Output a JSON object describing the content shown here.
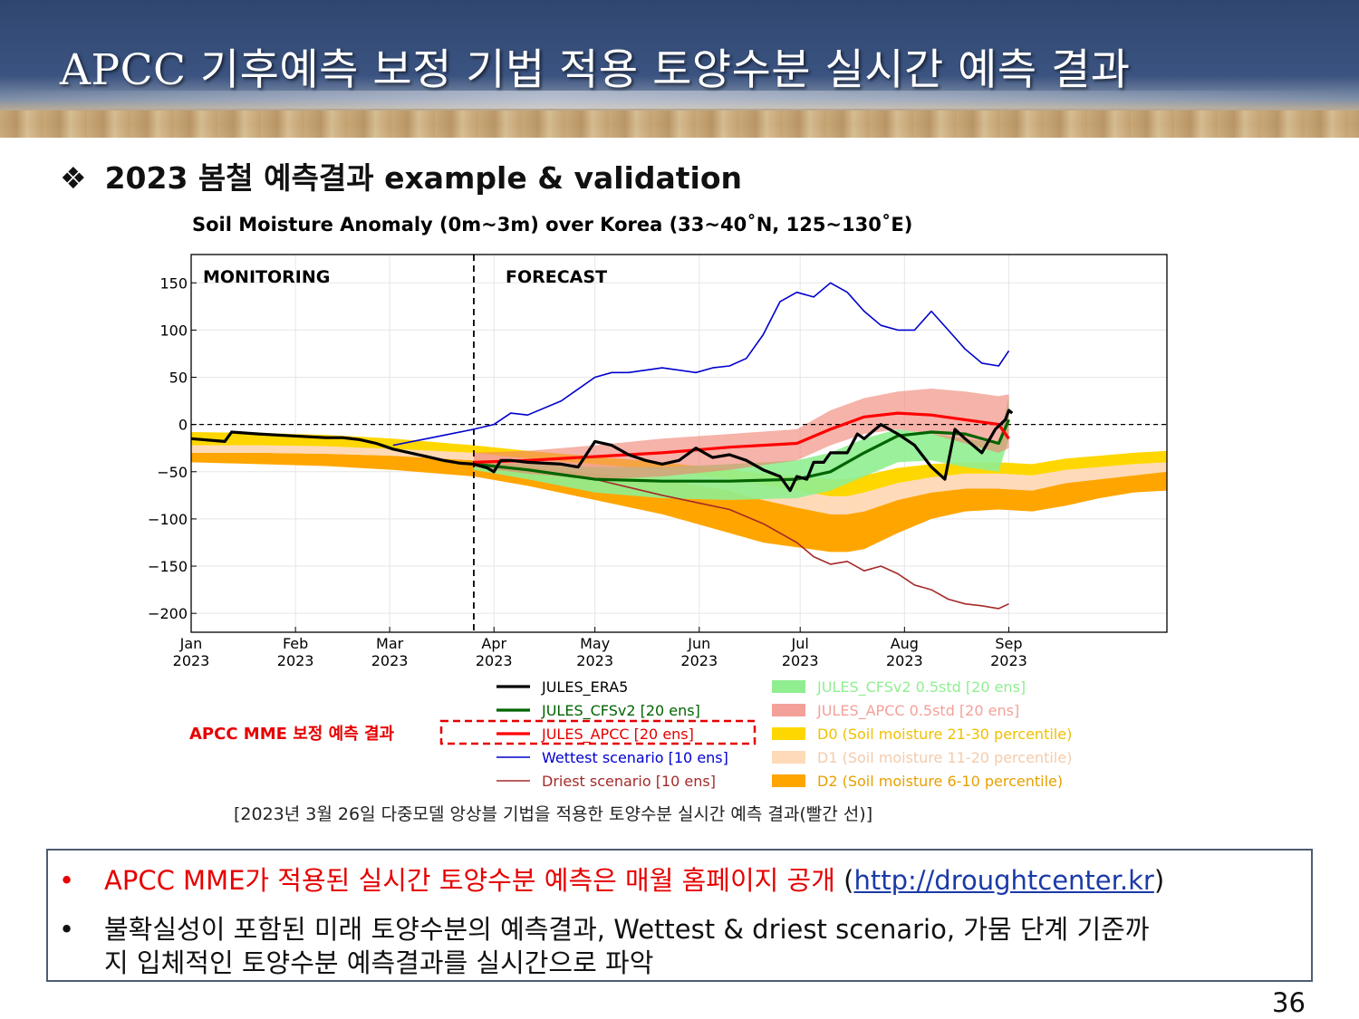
{
  "slide": {
    "title": "APCC 기후예측 보정 기법 적용 토양수분 실시간 예측 결과",
    "subtitle_bullet": "❖",
    "subtitle": "2023 봄철 예측결과 example & validation",
    "caption": "[2023년 3월 26일 다중모델 앙상블 기법을 적용한 토양수분 실시간 예측 결과(빨간 선)]",
    "callout": "APCC MME 보정 예측 결과",
    "page_number": "36"
  },
  "notes": {
    "bullet": "•",
    "line1_red": "APCC MME가 적용된 실시간 토양수분 예측은 매월 홈페이지 공개",
    "line1_open": " (",
    "line1_link": "http://droughtcenter.kr",
    "line1_close": ")",
    "line2": "불확실성이 포함된 미래 토양수분의 예측결과, Wettest & driest scenario, 가뭄 단계 기준까",
    "line3": "지 입체적인 토양수분 예측결과를 실시간으로 파악"
  },
  "chart_data": {
    "type": "line",
    "title": "Soil Moisture Anomaly (0m~3m) over Korea (33~40˚N, 125~130˚E)",
    "xlabel": "",
    "ylabel": "",
    "xlim_doy": [
      0,
      290
    ],
    "ylim": [
      -220,
      180
    ],
    "yticks": [
      150,
      100,
      50,
      0,
      -50,
      -100,
      -150,
      -200
    ],
    "ytick_labels": [
      "150",
      "100",
      "50",
      "0",
      "−50",
      "−100",
      "−150",
      "−200"
    ],
    "xticks": [
      {
        "doy": 0,
        "month": "Jan",
        "year": "2023"
      },
      {
        "doy": 31,
        "month": "Feb",
        "year": "2023"
      },
      {
        "doy": 59,
        "month": "Mar",
        "year": "2023"
      },
      {
        "doy": 90,
        "month": "Apr",
        "year": "2023"
      },
      {
        "doy": 120,
        "month": "May",
        "year": "2023"
      },
      {
        "doy": 151,
        "month": "Jun",
        "year": "2023"
      },
      {
        "doy": 181,
        "month": "Jul",
        "year": "2023"
      },
      {
        "doy": 212,
        "month": "Aug",
        "year": "2023"
      },
      {
        "doy": 243,
        "month": "Sep",
        "year": "2023"
      }
    ],
    "grid": true,
    "forecast_start_doy": 84,
    "annotations": [
      "MONITORING",
      "FORECAST"
    ],
    "legend_left": [
      {
        "label": "JULES_ERA5",
        "color": "#000000",
        "text_color": "#000000"
      },
      {
        "label": "JULES_CFSv2 [20 ens]",
        "color": "#006400",
        "text_color": "#006400"
      },
      {
        "label": "JULES_APCC [20 ens]",
        "color": "#ff0000",
        "text_color": "#e60000"
      },
      {
        "label": "Wettest scenario [10 ens]",
        "color": "#0000cd",
        "text_color": "#0000cd"
      },
      {
        "label": "Driest scenario [10 ens]",
        "color": "#a52a2a",
        "text_color": "#a52a2a"
      }
    ],
    "legend_right": [
      {
        "label": "JULES_CFSv2 0.5std [20 ens]",
        "color": "#90ee90",
        "text_color": "#90ee90"
      },
      {
        "label": "JULES_APCC 0.5std [20 ens]",
        "color": "#f4a09a",
        "text_color": "#f4a09a"
      },
      {
        "label": "D0 (Soil moisture 21-30 percentile)",
        "color": "#ffd700",
        "text_color": "#f0c000"
      },
      {
        "label": "D1 (Soil moisture 11-20 percentile)",
        "color": "#ffdab9",
        "text_color": "#f5cbaa"
      },
      {
        "label": "D2 (Soil moisture 6-10 percentile)",
        "color": "#ffa500",
        "text_color": "#e8a000"
      }
    ],
    "series": {
      "d2_band": {
        "x": [
          0,
          20,
          40,
          60,
          84,
          100,
          120,
          140,
          160,
          170,
          180,
          190,
          195,
          200,
          210,
          220,
          230,
          240,
          250,
          260,
          270,
          280,
          290
        ],
        "upper": [
          -30,
          -30,
          -31,
          -33,
          -38,
          -45,
          -52,
          -58,
          -70,
          -80,
          -88,
          -95,
          -95,
          -92,
          -80,
          -72,
          -68,
          -68,
          -70,
          -62,
          -58,
          -54,
          -50
        ],
        "lower": [
          -40,
          -42,
          -44,
          -48,
          -55,
          -65,
          -80,
          -95,
          -115,
          -125,
          -130,
          -135,
          -135,
          -132,
          -115,
          -100,
          -92,
          -90,
          -92,
          -86,
          -78,
          -72,
          -70
        ]
      },
      "d1_band": {
        "x": [
          0,
          20,
          40,
          60,
          84,
          100,
          120,
          140,
          160,
          170,
          180,
          190,
          195,
          200,
          210,
          220,
          230,
          240,
          250,
          260,
          270,
          280,
          290
        ],
        "upper": [
          -22,
          -22,
          -23,
          -26,
          -30,
          -36,
          -42,
          -48,
          -58,
          -64,
          -70,
          -76,
          -76,
          -72,
          -62,
          -56,
          -52,
          -52,
          -54,
          -48,
          -45,
          -42,
          -40
        ],
        "lower": [
          -30,
          -30,
          -31,
          -33,
          -38,
          -45,
          -52,
          -58,
          -70,
          -80,
          -88,
          -95,
          -95,
          -92,
          -80,
          -72,
          -68,
          -68,
          -70,
          -62,
          -58,
          -54,
          -50
        ]
      },
      "d0_band": {
        "x": [
          0,
          20,
          40,
          60,
          84,
          100,
          120,
          140,
          160,
          170,
          180,
          190,
          195,
          200,
          210,
          220,
          230,
          240,
          250,
          260,
          270,
          280,
          290
        ],
        "upper": [
          -8,
          -9,
          -11,
          -15,
          -22,
          -28,
          -34,
          -40,
          -48,
          -52,
          -55,
          -58,
          -58,
          -54,
          -46,
          -42,
          -40,
          -40,
          -42,
          -36,
          -33,
          -30,
          -28
        ],
        "lower": [
          -22,
          -22,
          -23,
          -26,
          -30,
          -36,
          -42,
          -48,
          -58,
          -64,
          -70,
          -76,
          -76,
          -72,
          -62,
          -56,
          -52,
          -52,
          -54,
          -48,
          -45,
          -42,
          -40
        ]
      },
      "cfs_band": {
        "x": [
          84,
          100,
          120,
          140,
          160,
          180,
          190,
          200,
          210,
          220,
          230,
          240,
          243
        ],
        "upper": [
          -40,
          -42,
          -45,
          -45,
          -42,
          -38,
          -30,
          -15,
          -5,
          -10,
          -15,
          -20,
          30
        ],
        "lower": [
          -48,
          -58,
          -72,
          -78,
          -80,
          -78,
          -70,
          -55,
          -40,
          -38,
          -45,
          -50,
          -15
        ]
      },
      "apcc_band": {
        "x": [
          84,
          100,
          120,
          140,
          160,
          180,
          190,
          200,
          210,
          220,
          230,
          240,
          243
        ],
        "upper": [
          -30,
          -28,
          -22,
          -15,
          -10,
          -5,
          15,
          28,
          35,
          38,
          35,
          30,
          32
        ],
        "lower": [
          -45,
          -52,
          -58,
          -55,
          -48,
          -38,
          -22,
          -10,
          -5,
          -10,
          -20,
          -30,
          -25
        ]
      },
      "era5": {
        "x": [
          0,
          10,
          12,
          20,
          30,
          40,
          45,
          50,
          55,
          60,
          65,
          70,
          75,
          80,
          84,
          88,
          90,
          92,
          95,
          100,
          110,
          115,
          120,
          125,
          130,
          135,
          140,
          145,
          150,
          155,
          160,
          165,
          170,
          175,
          178,
          180,
          183,
          185,
          188,
          190,
          195,
          198,
          200,
          205,
          210,
          215,
          220,
          224,
          227,
          230,
          235,
          239,
          242,
          243,
          244
        ],
        "y": [
          -15,
          -18,
          -8,
          -10,
          -12,
          -14,
          -14,
          -16,
          -20,
          -26,
          -30,
          -34,
          -38,
          -41,
          -42,
          -46,
          -50,
          -38,
          -38,
          -40,
          -42,
          -45,
          -18,
          -22,
          -32,
          -38,
          -42,
          -38,
          -25,
          -35,
          -32,
          -38,
          -48,
          -55,
          -70,
          -55,
          -58,
          -40,
          -40,
          -30,
          -30,
          -10,
          -15,
          0,
          -10,
          -22,
          -45,
          -58,
          -5,
          -15,
          -30,
          -5,
          5,
          15,
          12
        ]
      },
      "cfs_mean": {
        "x": [
          84,
          100,
          120,
          140,
          160,
          180,
          190,
          200,
          210,
          220,
          230,
          240,
          243
        ],
        "y": [
          -42,
          -48,
          -58,
          -60,
          -60,
          -58,
          -50,
          -30,
          -12,
          -8,
          -10,
          -20,
          5
        ]
      },
      "apcc_mean": {
        "x": [
          84,
          100,
          120,
          140,
          160,
          180,
          190,
          200,
          210,
          220,
          230,
          240,
          243
        ],
        "y": [
          -40,
          -38,
          -34,
          -30,
          -24,
          -20,
          -5,
          8,
          12,
          10,
          5,
          0,
          -15
        ]
      },
      "wettest": {
        "x": [
          60,
          70,
          84,
          90,
          95,
          100,
          110,
          120,
          125,
          130,
          140,
          150,
          155,
          160,
          165,
          170,
          175,
          180,
          185,
          190,
          195,
          200,
          205,
          210,
          215,
          220,
          225,
          230,
          235,
          240,
          243
        ],
        "y": [
          -22,
          -15,
          -5,
          0,
          12,
          10,
          25,
          50,
          55,
          55,
          60,
          55,
          60,
          62,
          70,
          95,
          130,
          140,
          135,
          150,
          140,
          120,
          105,
          100,
          100,
          120,
          100,
          80,
          65,
          62,
          78
        ]
      },
      "driest": {
        "x": [
          84,
          100,
          120,
          140,
          160,
          170,
          180,
          185,
          190,
          195,
          200,
          205,
          210,
          215,
          220,
          225,
          230,
          235,
          240,
          243
        ],
        "y": [
          -42,
          -48,
          -58,
          -75,
          -90,
          -105,
          -125,
          -140,
          -148,
          -145,
          -155,
          -150,
          -158,
          -170,
          -175,
          -185,
          -190,
          -192,
          -195,
          -190
        ]
      }
    }
  }
}
